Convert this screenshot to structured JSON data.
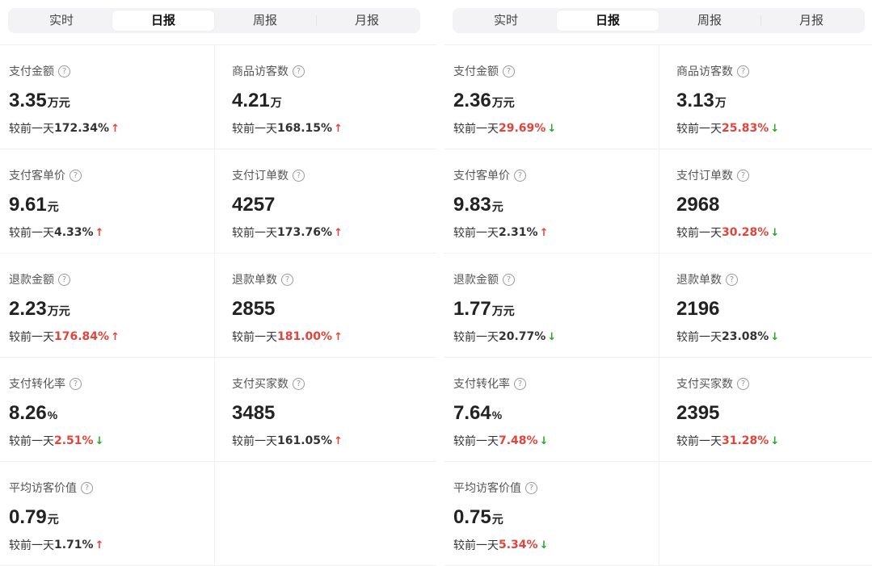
{
  "colors": {
    "up_arrow": "#e0443a",
    "down_arrow": "#2ba52b",
    "highlight_pct": "#e0443a"
  },
  "panels": [
    {
      "tabs": [
        {
          "label": "实时"
        },
        {
          "label": "日报",
          "active": true
        },
        {
          "label": "周报"
        },
        {
          "label": "月报"
        }
      ],
      "metrics": [
        {
          "label": "支付金额",
          "value": "3.35",
          "unit": "万元",
          "prefix": "较前一天",
          "pct": "172.34%",
          "trend": "up",
          "pct_red": false
        },
        {
          "label": "商品访客数",
          "value": "4.21",
          "unit": "万",
          "prefix": "较前一天",
          "pct": "168.15%",
          "trend": "up",
          "pct_red": false
        },
        {
          "label": "支付客单价",
          "value": "9.61",
          "unit": "元",
          "prefix": "较前一天",
          "pct": "4.33%",
          "trend": "up",
          "pct_red": false
        },
        {
          "label": "支付订单数",
          "value": "4257",
          "unit": "",
          "prefix": "较前一天",
          "pct": "173.76%",
          "trend": "up",
          "pct_red": false
        },
        {
          "label": "退款金额",
          "value": "2.23",
          "unit": "万元",
          "prefix": "较前一天",
          "pct": "176.84%",
          "trend": "up",
          "pct_red": true
        },
        {
          "label": "退款单数",
          "value": "2855",
          "unit": "",
          "prefix": "较前一天",
          "pct": "181.00%",
          "trend": "up",
          "pct_red": true
        },
        {
          "label": "支付转化率",
          "value": "8.26",
          "unit": "%",
          "prefix": "较前一天",
          "pct": "2.51%",
          "trend": "down",
          "pct_red": true
        },
        {
          "label": "支付买家数",
          "value": "3485",
          "unit": "",
          "prefix": "较前一天",
          "pct": "161.05%",
          "trend": "up",
          "pct_red": false
        },
        {
          "label": "平均访客价值",
          "value": "0.79",
          "unit": "元",
          "prefix": "较前一天",
          "pct": "1.71%",
          "trend": "up",
          "pct_red": false
        }
      ]
    },
    {
      "tabs": [
        {
          "label": "实时"
        },
        {
          "label": "日报",
          "active": true
        },
        {
          "label": "周报"
        },
        {
          "label": "月报"
        }
      ],
      "metrics": [
        {
          "label": "支付金额",
          "value": "2.36",
          "unit": "万元",
          "prefix": "较前一天",
          "pct": "29.69%",
          "trend": "down",
          "pct_red": true
        },
        {
          "label": "商品访客数",
          "value": "3.13",
          "unit": "万",
          "prefix": "较前一天",
          "pct": "25.83%",
          "trend": "down",
          "pct_red": true
        },
        {
          "label": "支付客单价",
          "value": "9.83",
          "unit": "元",
          "prefix": "较前一天",
          "pct": "2.31%",
          "trend": "up",
          "pct_red": false
        },
        {
          "label": "支付订单数",
          "value": "2968",
          "unit": "",
          "prefix": "较前一天",
          "pct": "30.28%",
          "trend": "down",
          "pct_red": true
        },
        {
          "label": "退款金额",
          "value": "1.77",
          "unit": "万元",
          "prefix": "较前一天",
          "pct": "20.77%",
          "trend": "down",
          "pct_red": false
        },
        {
          "label": "退款单数",
          "value": "2196",
          "unit": "",
          "prefix": "较前一天",
          "pct": "23.08%",
          "trend": "down",
          "pct_red": false
        },
        {
          "label": "支付转化率",
          "value": "7.64",
          "unit": "%",
          "prefix": "较前一天",
          "pct": "7.48%",
          "trend": "down",
          "pct_red": true
        },
        {
          "label": "支付买家数",
          "value": "2395",
          "unit": "",
          "prefix": "较前一天",
          "pct": "31.28%",
          "trend": "down",
          "pct_red": true
        },
        {
          "label": "平均访客价值",
          "value": "0.75",
          "unit": "元",
          "prefix": "较前一天",
          "pct": "5.34%",
          "trend": "down",
          "pct_red": true
        }
      ]
    }
  ]
}
